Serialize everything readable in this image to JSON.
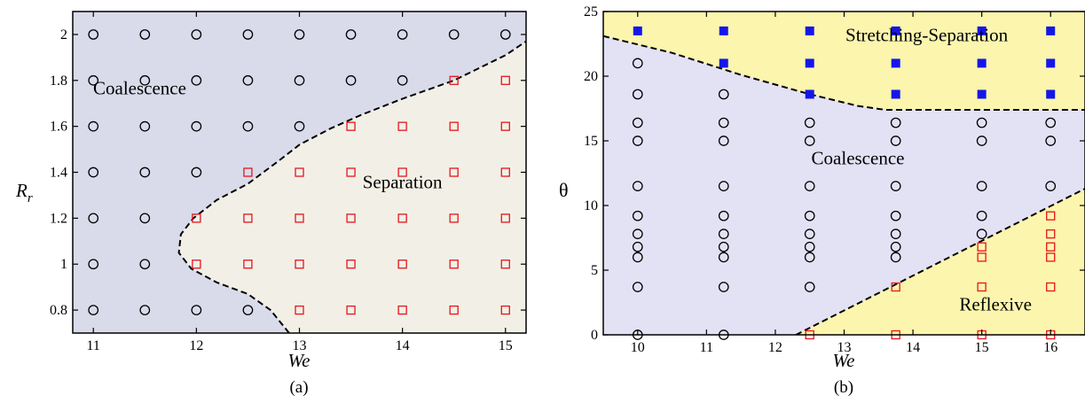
{
  "chart_data": [
    {
      "type": "scatter",
      "panel_label": "(a)",
      "xlabel": "We",
      "ylabel_main": "R",
      "ylabel_sub": "r",
      "xlim": [
        10.8,
        15.2
      ],
      "ylim": [
        0.7,
        2.1
      ],
      "xticks": [
        11,
        12,
        13,
        14,
        15
      ],
      "yticks": [
        0.8,
        1,
        1.2,
        1.4,
        1.6,
        1.8,
        2
      ],
      "xtick_labels": [
        "11",
        "12",
        "13",
        "14",
        "15"
      ],
      "ytick_labels": [
        "0.8",
        "1",
        "1.2",
        "1.4",
        "1.6",
        "1.8",
        "2"
      ],
      "grid": false,
      "region_labels": [
        {
          "text": "Coalescence",
          "x": 11.45,
          "y": 1.74
        },
        {
          "text": "Separation",
          "x": 14.0,
          "y": 1.33
        }
      ],
      "colors": {
        "coalescence_region": "#d9dbea",
        "separation_region": "#f2f0e6",
        "boundary": "#000000",
        "circle": "#000000",
        "square": "#e8141b"
      },
      "boundary": [
        [
          12.9,
          0.7
        ],
        [
          12.72,
          0.8
        ],
        [
          12.5,
          0.87
        ],
        [
          12.2,
          0.92
        ],
        [
          11.95,
          0.98
        ],
        [
          11.83,
          1.05
        ],
        [
          11.85,
          1.13
        ],
        [
          11.97,
          1.2
        ],
        [
          12.2,
          1.28
        ],
        [
          12.5,
          1.35
        ],
        [
          12.8,
          1.45
        ],
        [
          13.0,
          1.52
        ],
        [
          13.3,
          1.59
        ],
        [
          13.6,
          1.65
        ],
        [
          14.0,
          1.72
        ],
        [
          14.5,
          1.8
        ],
        [
          15.0,
          1.91
        ],
        [
          15.2,
          1.97
        ]
      ],
      "series": [
        {
          "marker": "open-circle",
          "points": [
            [
              11,
              2
            ],
            [
              11.5,
              2
            ],
            [
              12,
              2
            ],
            [
              12.5,
              2
            ],
            [
              13,
              2
            ],
            [
              13.5,
              2
            ],
            [
              14,
              2
            ],
            [
              14.5,
              2
            ],
            [
              15,
              2
            ],
            [
              11,
              1.8
            ],
            [
              11.5,
              1.8
            ],
            [
              12,
              1.8
            ],
            [
              12.5,
              1.8
            ],
            [
              13,
              1.8
            ],
            [
              13.5,
              1.8
            ],
            [
              14,
              1.8
            ],
            [
              11,
              1.6
            ],
            [
              11.5,
              1.6
            ],
            [
              12,
              1.6
            ],
            [
              12.5,
              1.6
            ],
            [
              13,
              1.6
            ],
            [
              11,
              1.4
            ],
            [
              11.5,
              1.4
            ],
            [
              12,
              1.4
            ],
            [
              11,
              1.2
            ],
            [
              11.5,
              1.2
            ],
            [
              11,
              1
            ],
            [
              11.5,
              1
            ],
            [
              11,
              0.8
            ],
            [
              11.5,
              0.8
            ],
            [
              12,
              0.8
            ],
            [
              12.5,
              0.8
            ]
          ]
        },
        {
          "marker": "open-square",
          "points": [
            [
              14.5,
              1.8
            ],
            [
              15,
              1.8
            ],
            [
              13.5,
              1.6
            ],
            [
              14,
              1.6
            ],
            [
              14.5,
              1.6
            ],
            [
              15,
              1.6
            ],
            [
              12.5,
              1.4
            ],
            [
              13,
              1.4
            ],
            [
              13.5,
              1.4
            ],
            [
              14,
              1.4
            ],
            [
              14.5,
              1.4
            ],
            [
              15,
              1.4
            ],
            [
              12,
              1.2
            ],
            [
              12.5,
              1.2
            ],
            [
              13,
              1.2
            ],
            [
              13.5,
              1.2
            ],
            [
              14,
              1.2
            ],
            [
              14.5,
              1.2
            ],
            [
              15,
              1.2
            ],
            [
              12,
              1
            ],
            [
              12.5,
              1
            ],
            [
              13,
              1
            ],
            [
              13.5,
              1
            ],
            [
              14,
              1
            ],
            [
              14.5,
              1
            ],
            [
              15,
              1
            ],
            [
              13,
              0.8
            ],
            [
              13.5,
              0.8
            ],
            [
              14,
              0.8
            ],
            [
              14.5,
              0.8
            ],
            [
              15,
              0.8
            ]
          ]
        }
      ]
    },
    {
      "type": "scatter",
      "panel_label": "(b)",
      "xlabel": "We",
      "ylabel": "θ",
      "xlim": [
        9.5,
        16.5
      ],
      "ylim": [
        0,
        25
      ],
      "xticks": [
        10,
        11,
        12,
        13,
        14,
        15,
        16
      ],
      "yticks": [
        0,
        5,
        10,
        15,
        20,
        25
      ],
      "xtick_labels": [
        "10",
        "11",
        "12",
        "13",
        "14",
        "15",
        "16"
      ],
      "ytick_labels": [
        "0",
        "5",
        "10",
        "15",
        "20",
        "25"
      ],
      "grid": false,
      "region_labels": [
        {
          "text": "Stretching-Separation",
          "x": 14.2,
          "y": 22.7
        },
        {
          "text": "Coalescence",
          "x": 13.2,
          "y": 13.2
        },
        {
          "text": "Reflexive",
          "x": 15.2,
          "y": 1.9
        }
      ],
      "colors": {
        "coalescence_region": "#e3e1f4",
        "other_regions": "#fbf5ae",
        "boundary": "#000000",
        "circle": "#000000",
        "open_square": "#e8141b",
        "filled_square": "#1416e8"
      },
      "boundary_upper": [
        [
          9.5,
          23.1
        ],
        [
          10.5,
          21.8
        ],
        [
          11.5,
          20.1
        ],
        [
          12.5,
          18.6
        ],
        [
          13.2,
          17.7
        ],
        [
          13.6,
          17.4
        ],
        [
          14.5,
          17.4
        ],
        [
          16.5,
          17.4
        ]
      ],
      "boundary_lower": [
        [
          12.3,
          0
        ],
        [
          16.5,
          11.3
        ]
      ],
      "series": [
        {
          "marker": "open-circle",
          "points": [
            [
              10,
              21
            ],
            [
              10,
              18.6
            ],
            [
              10,
              16.4
            ],
            [
              10,
              15
            ],
            [
              10,
              11.5
            ],
            [
              10,
              9.2
            ],
            [
              10,
              7.8
            ],
            [
              10,
              6.8
            ],
            [
              10,
              6
            ],
            [
              10,
              3.7
            ],
            [
              10,
              0
            ],
            [
              11.25,
              18.6
            ],
            [
              11.25,
              16.4
            ],
            [
              11.25,
              15
            ],
            [
              11.25,
              11.5
            ],
            [
              11.25,
              9.2
            ],
            [
              11.25,
              7.8
            ],
            [
              11.25,
              6.8
            ],
            [
              11.25,
              6
            ],
            [
              11.25,
              3.7
            ],
            [
              11.25,
              0
            ],
            [
              12.5,
              16.4
            ],
            [
              12.5,
              15
            ],
            [
              12.5,
              11.5
            ],
            [
              12.5,
              9.2
            ],
            [
              12.5,
              7.8
            ],
            [
              12.5,
              6.8
            ],
            [
              12.5,
              6
            ],
            [
              12.5,
              3.7
            ],
            [
              13.75,
              16.4
            ],
            [
              13.75,
              15
            ],
            [
              13.75,
              11.5
            ],
            [
              13.75,
              9.2
            ],
            [
              13.75,
              7.8
            ],
            [
              13.75,
              6.8
            ],
            [
              13.75,
              6
            ],
            [
              15,
              16.4
            ],
            [
              15,
              15
            ],
            [
              15,
              11.5
            ],
            [
              15,
              9.2
            ],
            [
              15,
              7.8
            ],
            [
              16,
              16.4
            ],
            [
              16,
              15
            ],
            [
              16,
              11.5
            ]
          ]
        },
        {
          "marker": "filled-square",
          "points": [
            [
              10,
              23.5
            ],
            [
              11.25,
              23.5
            ],
            [
              11.25,
              21
            ],
            [
              12.5,
              23.5
            ],
            [
              12.5,
              21
            ],
            [
              12.5,
              18.6
            ],
            [
              13.75,
              23.5
            ],
            [
              13.75,
              21
            ],
            [
              13.75,
              18.6
            ],
            [
              15,
              23.5
            ],
            [
              15,
              21
            ],
            [
              15,
              18.6
            ],
            [
              16,
              23.5
            ],
            [
              16,
              21
            ],
            [
              16,
              18.6
            ]
          ]
        },
        {
          "marker": "open-square",
          "points": [
            [
              12.5,
              0
            ],
            [
              13.75,
              3.7
            ],
            [
              13.75,
              0
            ],
            [
              15,
              6.8
            ],
            [
              15,
              6
            ],
            [
              15,
              3.7
            ],
            [
              15,
              0
            ],
            [
              16,
              9.2
            ],
            [
              16,
              7.8
            ],
            [
              16,
              6.8
            ],
            [
              16,
              6
            ],
            [
              16,
              3.7
            ],
            [
              16,
              0
            ]
          ]
        }
      ]
    }
  ]
}
